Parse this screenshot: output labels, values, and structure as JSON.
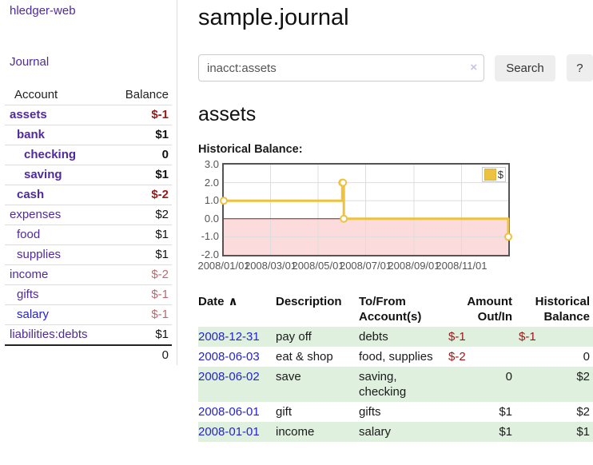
{
  "colors": {
    "purple-link": "#4f2a9e",
    "blue-link": "#2423cf",
    "neg-strong": "#9e1414",
    "neg-muted": "#b96a6f",
    "row-green": "#dff0df",
    "gold": "#edc240",
    "negative-fill": "#fbdbdb",
    "zero-line": "#8b1a1a",
    "button-bg": "#eeeeee",
    "divider": "#dddddd",
    "chart-border": "#545454",
    "axis-text": "#545454",
    "gridline": "#dddddd"
  },
  "sidebar": {
    "brand": "hledger-web",
    "journal_link": "Journal",
    "accounts_table": {
      "account_header": "Account",
      "balance_header": "Balance",
      "rows": [
        {
          "name": "assets",
          "indent": 1,
          "bold": true,
          "balance": "$-1",
          "balance_style": "neg-strong"
        },
        {
          "name": "bank",
          "indent": 2,
          "bold": true,
          "balance": "$1",
          "balance_style": "normal"
        },
        {
          "name": "checking",
          "indent": 3,
          "bold": true,
          "balance": "0",
          "balance_style": "normal"
        },
        {
          "name": "saving",
          "indent": 3,
          "bold": true,
          "balance": "$1",
          "balance_style": "normal"
        },
        {
          "name": "cash",
          "indent": 2,
          "bold": true,
          "balance": "$-2",
          "balance_style": "neg-strong"
        },
        {
          "name": "expenses",
          "indent": 1,
          "bold": false,
          "balance": "$2",
          "balance_style": "normal"
        },
        {
          "name": "food",
          "indent": 2,
          "bold": false,
          "balance": "$1",
          "balance_style": "normal"
        },
        {
          "name": "supplies",
          "indent": 2,
          "bold": false,
          "balance": "$1",
          "balance_style": "normal"
        },
        {
          "name": "income",
          "indent": 1,
          "bold": false,
          "balance": "$-2",
          "balance_style": "neg-muted"
        },
        {
          "name": "gifts",
          "indent": 2,
          "bold": false,
          "balance": "$-1",
          "balance_style": "neg-muted"
        },
        {
          "name": "salary",
          "indent": 2,
          "bold": false,
          "balance": "$-1",
          "balance_style": "neg-muted",
          "link_variant": "blue"
        },
        {
          "name": "liabilities:debts",
          "indent": 1,
          "bold": false,
          "balance": "$1",
          "balance_style": "normal"
        }
      ],
      "total": "0"
    }
  },
  "header": {
    "title": "sample.journal"
  },
  "search": {
    "value": "inacct:assets",
    "clear_icon": "×",
    "button_label": "Search",
    "help_label": "?"
  },
  "account_page": {
    "heading": "assets",
    "chart_label": "Historical Balance:"
  },
  "chart_data": {
    "type": "line",
    "title": "Historical Balance",
    "step": true,
    "series": [
      {
        "name": "$",
        "color": "#edc240",
        "points": [
          [
            "2008-01-01",
            1
          ],
          [
            "2008-06-01",
            2
          ],
          [
            "2008-06-02",
            2
          ],
          [
            "2008-06-03",
            0
          ],
          [
            "2008-12-31",
            -1
          ]
        ]
      }
    ],
    "xrange": [
      "2008-01-01",
      "2008-12-31"
    ],
    "ylim": [
      -2,
      3
    ],
    "yticks": [
      {
        "value": 3,
        "label": "3.0"
      },
      {
        "value": 2,
        "label": "2.0"
      },
      {
        "value": 1,
        "label": "1.0"
      },
      {
        "value": 0,
        "label": "0.0"
      },
      {
        "value": -1,
        "label": "-1.0"
      },
      {
        "value": -2,
        "label": "-2.0"
      }
    ],
    "xticks": [
      {
        "date": "2008-01-01",
        "label": "2008/01/01"
      },
      {
        "date": "2008-03-01",
        "label": "2008/03/01"
      },
      {
        "date": "2008-05-01",
        "label": "2008/05/01"
      },
      {
        "date": "2008-07-01",
        "label": "2008/07/01"
      },
      {
        "date": "2008-09-01",
        "label": "2008/09/01"
      },
      {
        "date": "2008-11-01",
        "label": "2008/11/01"
      }
    ],
    "legend": {
      "label": "$",
      "position": "top-right"
    },
    "grid": true,
    "negative_region": true
  },
  "transactions": {
    "headers": [
      {
        "label": "Date",
        "sort_indicator": "∧",
        "align": "left"
      },
      {
        "label": "Description",
        "align": "left"
      },
      {
        "label": "To/From Account(s)",
        "wrap": [
          "To/From",
          "Account(s)"
        ],
        "align": "left"
      },
      {
        "label": "Amount Out/In",
        "wrap": [
          "Amount",
          "Out/In"
        ],
        "align": "right"
      },
      {
        "label": "Historical Balance",
        "wrap": [
          "Historical",
          "Balance"
        ],
        "align": "right"
      }
    ],
    "rows": [
      {
        "date": "2008-12-31",
        "description": "pay off",
        "accounts": "debts",
        "amount": "$-1",
        "amount_negative": true,
        "balance": "$-1",
        "balance_negative": true,
        "shade": true
      },
      {
        "date": "2008-06-03",
        "description": "eat & shop",
        "accounts": "food, supplies",
        "amount": "$-2",
        "amount_negative": true,
        "balance": "0",
        "balance_negative": false,
        "shade": false
      },
      {
        "date": "2008-06-02",
        "description": "save",
        "accounts": "saving, checking",
        "amount": "0",
        "amount_negative": false,
        "balance": "$2",
        "balance_negative": false,
        "shade": true
      },
      {
        "date": "2008-06-01",
        "description": "gift",
        "accounts": "gifts",
        "amount": "$1",
        "amount_negative": false,
        "balance": "$2",
        "balance_negative": false,
        "shade": false
      },
      {
        "date": "2008-01-01",
        "description": "income",
        "accounts": "salary",
        "amount": "$1",
        "amount_negative": false,
        "balance": "$1",
        "balance_negative": false,
        "shade": true
      }
    ]
  }
}
